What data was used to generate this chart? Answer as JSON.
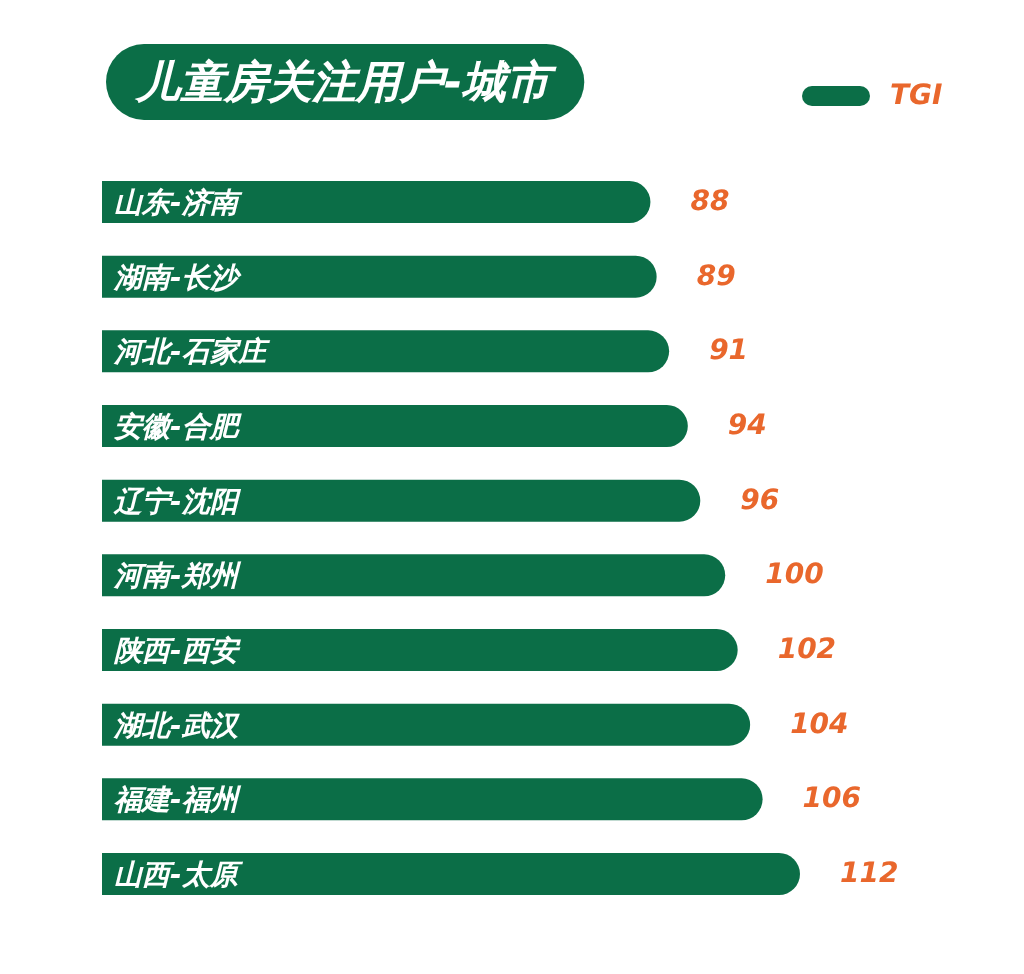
{
  "chart_data": {
    "type": "bar",
    "orientation": "horizontal",
    "title": "儿童房关注用户-城市",
    "categories": [
      "山东-济南",
      "湖南-长沙",
      "河北-石家庄",
      "安徽-合肥",
      "辽宁-沈阳",
      "河南-郑州",
      "陕西-西安",
      "湖北-武汉",
      "福建-福州",
      "山西-太原"
    ],
    "series": [
      {
        "name": "TGI",
        "color": "#0b6e47",
        "values": [
          88,
          89,
          91,
          94,
          96,
          100,
          102,
          104,
          106,
          112
        ]
      }
    ],
    "data_labels": true,
    "legend": "top right"
  }
}
